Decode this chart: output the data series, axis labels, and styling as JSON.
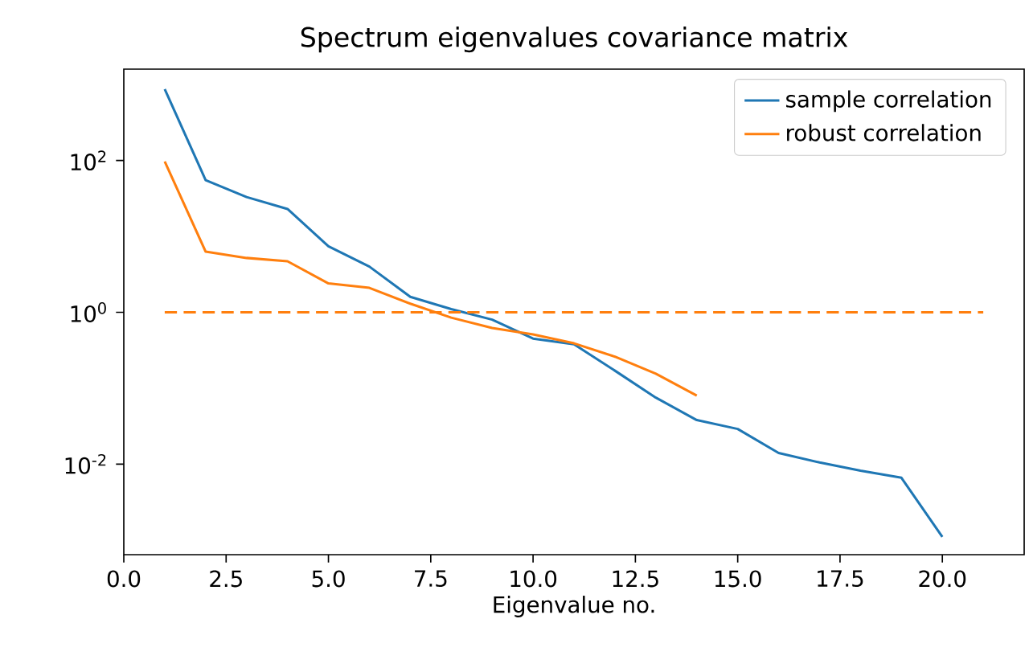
{
  "chart_data": {
    "type": "line",
    "title": "Spectrum eigenvalues covariance matrix",
    "xlabel": "Eigenvalue no.",
    "x": [
      1,
      2,
      3,
      4,
      5,
      6,
      7,
      8,
      9,
      10,
      11,
      12,
      13,
      14,
      15,
      16,
      17,
      18,
      19,
      20
    ],
    "series": [
      {
        "name": "sample correlation",
        "color": "#1f77b4",
        "values": [
          870,
          55,
          33,
          23,
          7.4,
          4,
          1.6,
          1.1,
          0.8,
          0.45,
          0.38,
          0.17,
          0.075,
          0.038,
          0.029,
          0.014,
          0.0105,
          0.0082,
          0.0066,
          0.0011
        ]
      },
      {
        "name": "robust correlation",
        "color": "#ff7f0e",
        "values": [
          97,
          6.3,
          5.2,
          4.7,
          2.4,
          2.1,
          1.3,
          0.85,
          0.62,
          0.51,
          0.39,
          0.26,
          0.155,
          0.08,
          null,
          null,
          null,
          null,
          null,
          null
        ]
      },
      {
        "color": "#ff7f0e",
        "x": [
          1,
          21
        ],
        "values": [
          1,
          1
        ],
        "line_style": "dashed"
      }
    ],
    "log": "y",
    "xlim": [
      0,
      22
    ],
    "ylim": [
      0.00064,
      1600
    ],
    "xticks": [
      {
        "value": 0,
        "label": "0.0"
      },
      {
        "value": 2.5,
        "label": "2.5"
      },
      {
        "value": 5,
        "label": "5.0"
      },
      {
        "value": 7.5,
        "label": "7.5"
      },
      {
        "value": 10,
        "label": "10.0"
      },
      {
        "value": 12.5,
        "label": "12.5"
      },
      {
        "value": 15,
        "label": "15.0"
      },
      {
        "value": 17.5,
        "label": "17.5"
      },
      {
        "value": 20,
        "label": "20.0"
      }
    ],
    "yticks": [
      {
        "value": 0.01,
        "label": "10$^{-2}$"
      },
      {
        "value": 1,
        "label": "10$^{0}$"
      },
      {
        "value": 100,
        "label": "10$^{2}$"
      }
    ],
    "legend": "top right",
    "grid": false,
    "marker": "none",
    "line_style": "solid"
  }
}
